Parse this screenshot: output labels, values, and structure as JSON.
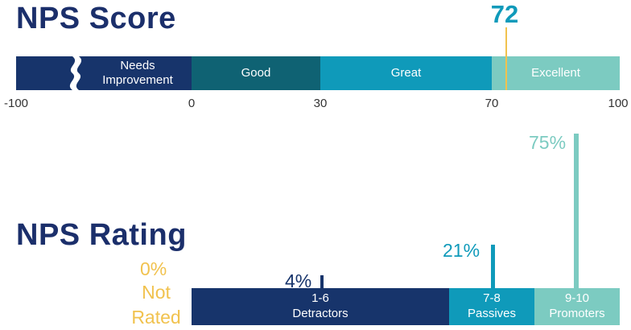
{
  "score_title": "NPS Score",
  "rating_title": "NPS Rating",
  "colors": {
    "navy": "#17346b",
    "teal_dark": "#0f6273",
    "teal": "#0f9aba",
    "teal_light": "#7ccbc1",
    "yellow": "#f1c24e",
    "title": "#1b2f6b"
  },
  "chart_data": [
    {
      "type": "bar",
      "title": "NPS Score",
      "orientation": "horizontal-range",
      "xlim": [
        -100,
        100
      ],
      "axis_break_shown": true,
      "tick_labels": [
        "-100",
        "0",
        "30",
        "70",
        "100"
      ],
      "segments": [
        {
          "label": "Needs\nImprovement",
          "from": -100,
          "to": 0,
          "color": "#17346b"
        },
        {
          "label": "Good",
          "from": 0,
          "to": 30,
          "color": "#0f6273"
        },
        {
          "label": "Great",
          "from": 30,
          "to": 70,
          "color": "#0f9aba"
        },
        {
          "label": "Excellent",
          "from": 70,
          "to": 100,
          "color": "#7ccbc1"
        }
      ],
      "marker": {
        "value": 72,
        "label": "72",
        "color": "#f1c24e"
      }
    },
    {
      "type": "bar",
      "title": "NPS Rating",
      "categories": [
        {
          "top": "Not",
          "bottom": "Rated",
          "value": 0,
          "label": "0%",
          "color": "#f1c24e"
        },
        {
          "top": "1-6",
          "bottom": "Detractors",
          "value": 4,
          "label": "4%",
          "color": "#17346b"
        },
        {
          "top": "7-8",
          "bottom": "Passives",
          "value": 21,
          "label": "21%",
          "color": "#0f9aba"
        },
        {
          "top": "9-10",
          "bottom": "Promoters",
          "value": 75,
          "label": "75%",
          "color": "#7ccbc1"
        }
      ]
    }
  ]
}
